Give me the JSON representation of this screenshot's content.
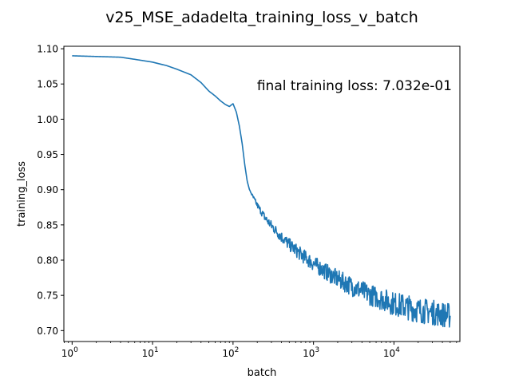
{
  "chart_data": {
    "type": "line",
    "title": "v25_MSE_adadelta_training_loss_v_batch",
    "xlabel": "batch",
    "ylabel": "training_loss",
    "annotation": "final training loss: 7.032e-01",
    "x_scale": "log",
    "xlim": [
      0.79,
      66000
    ],
    "ylim": [
      0.6845,
      1.1035
    ],
    "grid": false,
    "x_ticks": [
      {
        "value": 1,
        "base": "10",
        "exp": "0"
      },
      {
        "value": 10,
        "base": "10",
        "exp": "1"
      },
      {
        "value": 100,
        "base": "10",
        "exp": "2"
      },
      {
        "value": 1000,
        "base": "10",
        "exp": "3"
      },
      {
        "value": 10000,
        "base": "10",
        "exp": "4"
      }
    ],
    "y_ticks": [
      "0.70",
      "0.75",
      "0.80",
      "0.85",
      "0.90",
      "0.95",
      "1.00",
      "1.05",
      "1.10"
    ],
    "series": [
      {
        "color": "#1f77b4",
        "x": [
          1,
          2,
          4,
          6,
          10,
          15,
          20,
          30,
          40,
          50,
          60,
          70,
          80,
          90,
          100,
          110,
          120,
          130,
          140,
          150,
          160,
          180,
          200,
          250,
          300,
          400,
          500,
          700,
          1000,
          1500,
          2000,
          3000,
          5000,
          7000,
          10000,
          15000,
          20000,
          30000,
          40000,
          50000
        ],
        "y": [
          1.09,
          1.089,
          1.088,
          1.085,
          1.081,
          1.076,
          1.071,
          1.063,
          1.052,
          1.04,
          1.033,
          1.026,
          1.021,
          1.018,
          1.022,
          1.01,
          0.99,
          0.965,
          0.935,
          0.912,
          0.9,
          0.888,
          0.878,
          0.86,
          0.849,
          0.833,
          0.822,
          0.808,
          0.795,
          0.782,
          0.773,
          0.763,
          0.751,
          0.745,
          0.738,
          0.733,
          0.729,
          0.726,
          0.723,
          0.721
        ],
        "noise_band": [
          0,
          0,
          0,
          0,
          0,
          0,
          0,
          0,
          0,
          0,
          0,
          0,
          0,
          0,
          0,
          0,
          0,
          0,
          0,
          0,
          0,
          0.003,
          0.004,
          0.006,
          0.007,
          0.008,
          0.009,
          0.01,
          0.011,
          0.012,
          0.013,
          0.014,
          0.015,
          0.016,
          0.017,
          0.018,
          0.018,
          0.018,
          0.018,
          0.018
        ]
      }
    ]
  }
}
